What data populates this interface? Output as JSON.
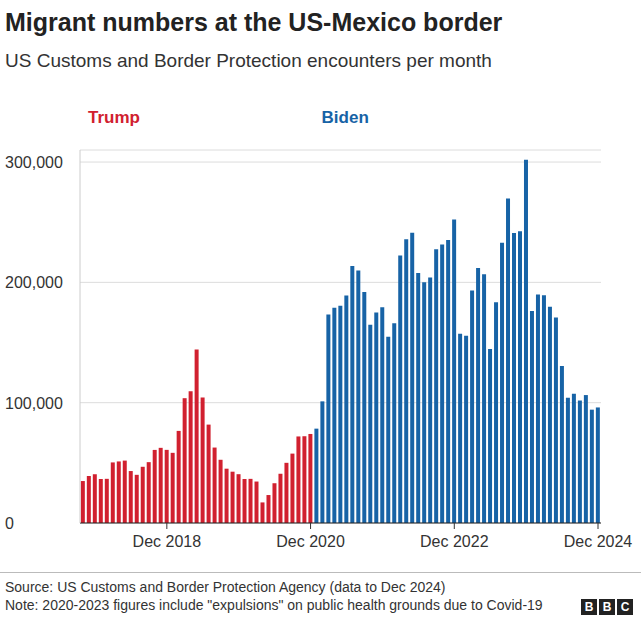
{
  "chart_data": {
    "type": "bar",
    "title": "Migrant numbers at the US-Mexico border",
    "subtitle": "US Customs and Border Protection encounters per month",
    "categories": [
      null,
      null,
      null,
      null,
      null,
      null,
      null,
      null,
      null,
      null,
      null,
      null,
      null,
      null,
      "Dec 2018",
      null,
      null,
      null,
      null,
      null,
      null,
      null,
      null,
      null,
      null,
      null,
      null,
      null,
      null,
      null,
      null,
      null,
      null,
      null,
      null,
      null,
      null,
      null,
      "Dec 2020",
      null,
      null,
      null,
      null,
      null,
      null,
      null,
      null,
      null,
      null,
      null,
      null,
      null,
      null,
      null,
      null,
      null,
      null,
      null,
      null,
      null,
      null,
      null,
      "Dec 2022",
      null,
      null,
      null,
      null,
      null,
      null,
      null,
      null,
      null,
      null,
      null,
      null,
      null,
      null,
      null,
      null,
      null,
      null,
      null,
      null,
      null,
      null,
      null,
      "Dec 2024"
    ],
    "series": [
      {
        "name": "Trump",
        "color": "#d1202f",
        "values": [
          34871,
          39051,
          40519,
          36585,
          36712,
          50347,
          51168,
          51862,
          43180,
          40036,
          46719,
          50568,
          60745,
          62469,
          60782,
          58317,
          76545,
          103731,
          109415,
          144116,
          104311,
          81777,
          62707,
          52546,
          45139,
          42643,
          40565,
          36585,
          36687,
          34460,
          17106,
          23237,
          33049,
          40929,
          50014,
          57674,
          71929,
          72113,
          73994,
          null,
          null,
          null,
          null,
          null,
          null,
          null,
          null,
          null,
          null,
          null,
          null,
          null,
          null,
          null,
          null,
          null,
          null,
          null,
          null,
          null,
          null,
          null,
          null,
          null,
          null,
          null,
          null,
          null,
          null,
          null,
          null,
          null,
          null,
          null,
          null,
          null,
          null,
          null,
          null,
          null,
          null,
          null,
          null,
          null,
          null,
          null,
          null
        ]
      },
      {
        "name": "Biden",
        "color": "#1763a6",
        "values": [
          null,
          null,
          null,
          null,
          null,
          null,
          null,
          null,
          null,
          null,
          null,
          null,
          null,
          null,
          null,
          null,
          null,
          null,
          null,
          null,
          null,
          null,
          null,
          null,
          null,
          null,
          null,
          null,
          null,
          null,
          null,
          null,
          null,
          null,
          null,
          null,
          null,
          null,
          null,
          78414,
          101099,
          173277,
          178795,
          180597,
          189034,
          213593,
          209840,
          192001,
          164837,
          174845,
          179253,
          154874,
          166010,
          222239,
          235785,
          241136,
          207834,
          200162,
          204087,
          227547,
          231529,
          235173,
          252315,
          157358,
          155639,
          193249,
          211992,
          206690,
          144556,
          183503,
          232972,
          269735,
          240936,
          242418,
          301983,
          176205,
          189913,
          189359,
          179737,
          170716,
          130415,
          104101,
          107473,
          101790,
          106321,
          94190,
          96035
        ]
      }
    ],
    "ylim": [
      0,
      310000
    ],
    "yticks": [
      0,
      {
        "value": 100000,
        "label": "100,000"
      },
      {
        "value": 200000,
        "label": "200,000"
      },
      {
        "value": 300000,
        "label": "300,000"
      }
    ],
    "grid": true,
    "source": "Source: US Customs and Border Protection Agency (data to Dec 2024)",
    "note": "Note: 2020-2023 figures include \"expulsions\" on public health grounds due to Covid-19",
    "footer_logo": "BBC"
  }
}
